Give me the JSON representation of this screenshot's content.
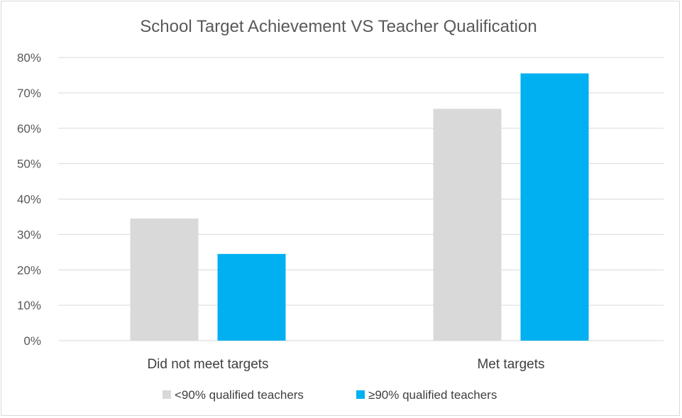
{
  "chart_data": {
    "type": "bar",
    "title": "School Target Achievement VS Teacher Qualification",
    "xlabel": "",
    "ylabel": "",
    "categories": [
      "Did not meet targets",
      "Met targets"
    ],
    "series": [
      {
        "name": "<90% qualified teachers",
        "values": [
          34.5,
          65.5
        ],
        "color": "#d9d9d9"
      },
      {
        "name": "≥90% qualified teachers",
        "values": [
          24.5,
          75.5
        ],
        "color": "#00b0f0"
      }
    ],
    "ylim": [
      0,
      80
    ],
    "yticks": [
      {
        "value": 0,
        "label": "0%"
      },
      {
        "value": 10,
        "label": "10%"
      },
      {
        "value": 20,
        "label": "20%"
      },
      {
        "value": 30,
        "label": "30%"
      },
      {
        "value": 40,
        "label": "40%"
      },
      {
        "value": 50,
        "label": "50%"
      },
      {
        "value": 60,
        "label": "60%"
      },
      {
        "value": 70,
        "label": "70%"
      },
      {
        "value": 80,
        "label": "80%"
      }
    ],
    "grid": true,
    "legend": "bottom",
    "gridline_color": "#d9d9d9"
  }
}
